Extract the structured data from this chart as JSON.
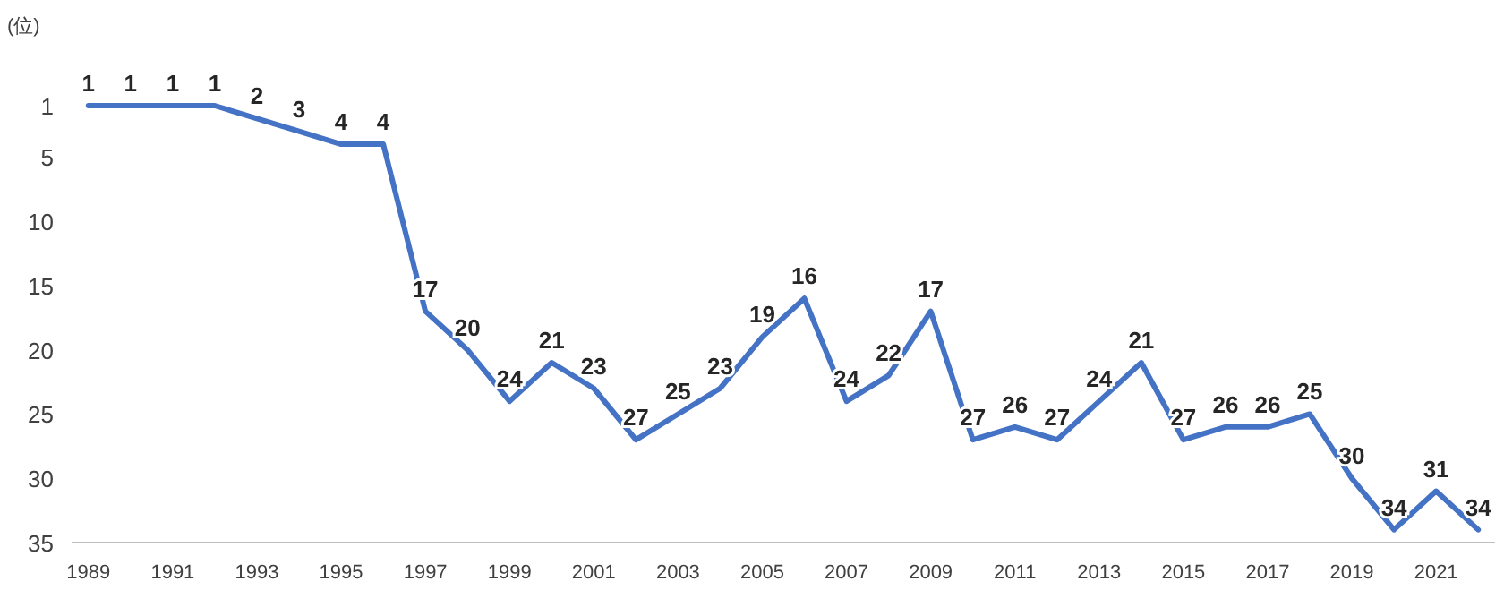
{
  "chart_data": {
    "type": "line",
    "ylabel": "(位)",
    "color": "#4472c4",
    "x": [
      1989,
      1990,
      1991,
      1992,
      1993,
      1994,
      1995,
      1996,
      1997,
      1998,
      1999,
      2000,
      2001,
      2002,
      2003,
      2004,
      2005,
      2006,
      2007,
      2008,
      2009,
      2010,
      2011,
      2012,
      2013,
      2014,
      2015,
      2016,
      2017,
      2018,
      2019,
      2020,
      2021,
      2022
    ],
    "values": [
      1,
      1,
      1,
      1,
      2,
      3,
      4,
      4,
      17,
      20,
      24,
      21,
      23,
      27,
      25,
      23,
      19,
      16,
      24,
      22,
      17,
      27,
      26,
      27,
      24,
      21,
      27,
      26,
      26,
      25,
      30,
      34,
      31,
      34
    ],
    "data_labels": true,
    "xlim": [
      1988.6,
      2022.4
    ],
    "xticks": [
      1989,
      1991,
      1993,
      1995,
      1997,
      1999,
      2001,
      2003,
      2005,
      2007,
      2009,
      2011,
      2013,
      2015,
      2017,
      2019,
      2021
    ],
    "ylim": [
      35,
      1
    ],
    "yticks": [
      1,
      5,
      10,
      15,
      20,
      25,
      30,
      35
    ]
  }
}
